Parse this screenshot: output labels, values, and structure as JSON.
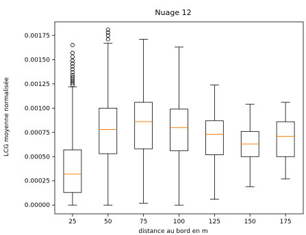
{
  "chart_data": {
    "type": "box",
    "title": "Nuage 12",
    "xlabel": "distance au bord en m",
    "ylabel": "LCG moyenne normalisée",
    "categories": [
      "25",
      "50",
      "75",
      "100",
      "125",
      "150",
      "175"
    ],
    "yticks": [
      "0.00000",
      "0.00025",
      "0.00050",
      "0.00075",
      "0.00100",
      "0.00125",
      "0.00150",
      "0.00175"
    ],
    "ytick_values": [
      0,
      0.00025,
      0.0005,
      0.00075,
      0.001,
      0.00125,
      0.0015,
      0.00175
    ],
    "ylim": [
      -9e-05,
      0.00189
    ],
    "grid": false,
    "box_color": "#000000",
    "median_color": "#ff7f0e",
    "boxes": [
      {
        "category": "25",
        "whislo": 0.0,
        "q1": 0.00013,
        "med": 0.00032,
        "q3": 0.00057,
        "whishi": 0.00122,
        "fliers": [
          0.00124,
          0.00126,
          0.00128,
          0.0013,
          0.00132,
          0.00134,
          0.00137,
          0.0014,
          0.00143,
          0.00146,
          0.00149,
          0.00153,
          0.00157,
          0.00165
        ]
      },
      {
        "category": "50",
        "whislo": 0.0,
        "q1": 0.00053,
        "med": 0.00078,
        "q3": 0.001,
        "whishi": 0.00167,
        "fliers": [
          0.00171,
          0.00175,
          0.00178,
          0.00181
        ]
      },
      {
        "category": "75",
        "whislo": 2e-05,
        "q1": 0.00058,
        "med": 0.00086,
        "q3": 0.00106,
        "whishi": 0.00171,
        "fliers": []
      },
      {
        "category": "100",
        "whislo": 0.0,
        "q1": 0.00056,
        "med": 0.0008,
        "q3": 0.00099,
        "whishi": 0.00163,
        "fliers": []
      },
      {
        "category": "125",
        "whislo": 6e-05,
        "q1": 0.00052,
        "med": 0.00073,
        "q3": 0.00087,
        "whishi": 0.00124,
        "fliers": []
      },
      {
        "category": "150",
        "whislo": 0.00019,
        "q1": 0.0005,
        "med": 0.00063,
        "q3": 0.00076,
        "whishi": 0.00104,
        "fliers": []
      },
      {
        "category": "175",
        "whislo": 0.00027,
        "q1": 0.0005,
        "med": 0.00071,
        "q3": 0.00086,
        "whishi": 0.00106,
        "fliers": []
      }
    ]
  }
}
